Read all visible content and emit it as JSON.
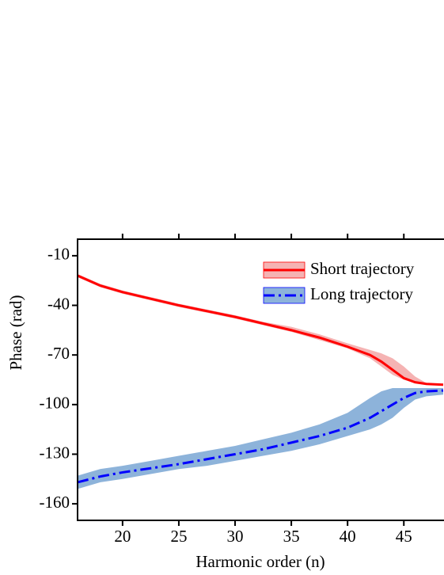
{
  "chart_data": {
    "type": "line_band",
    "x_label": "Harmonic order (n)",
    "y_label": "Phase (rad)",
    "x": [
      16,
      18,
      20,
      22.5,
      25,
      27.5,
      30,
      32.5,
      35,
      37.5,
      40,
      42,
      43,
      44,
      45,
      46,
      47,
      48.5
    ],
    "series": [
      {
        "name": "Short trajectory",
        "color": "#ff0000",
        "band_color": "#f5b3b3",
        "dash": "solid",
        "values": [
          -22,
          -28,
          -32,
          -36,
          -40,
          -43.5,
          -47,
          -51,
          -55,
          -59.5,
          -65,
          -70,
          -74,
          -79,
          -84,
          -86.5,
          -87.5,
          -88
        ],
        "band_upper": [
          -21,
          -27,
          -31,
          -35,
          -39,
          -42.5,
          -46,
          -50,
          -53,
          -57.5,
          -63,
          -67,
          -69,
          -72,
          -77,
          -83,
          -87,
          -88
        ],
        "band_lower": [
          -23,
          -29,
          -33,
          -37,
          -41,
          -44.5,
          -48,
          -52,
          -56,
          -61,
          -66,
          -72,
          -77,
          -82,
          -85,
          -87,
          -88,
          -88.5
        ]
      },
      {
        "name": "Long trajectory",
        "color": "#0000ff",
        "band_color": "#8db3da",
        "dash": "dashdot",
        "values": [
          -147,
          -143.5,
          -141,
          -138.5,
          -136,
          -133,
          -130,
          -127,
          -123,
          -119,
          -114,
          -108,
          -104,
          -100,
          -96,
          -93,
          -92,
          -91.5
        ],
        "band_upper": [
          -143,
          -139,
          -137,
          -134,
          -131,
          -128,
          -125,
          -121,
          -117,
          -112,
          -105,
          -96,
          -92,
          -90,
          -90,
          -90,
          -90,
          -90
        ],
        "band_lower": [
          -151,
          -147,
          -145,
          -142,
          -139,
          -137,
          -134,
          -131,
          -128,
          -124,
          -119,
          -115,
          -112,
          -108,
          -102,
          -97,
          -95,
          -94
        ]
      }
    ],
    "xlim": [
      16,
      48.5
    ],
    "xticks": [
      20,
      25,
      30,
      35,
      40,
      45
    ],
    "ylim": [
      -170,
      0
    ],
    "yticks": [
      -160,
      -130,
      -100,
      -70,
      -40,
      -10
    ],
    "legend": "upper right"
  }
}
